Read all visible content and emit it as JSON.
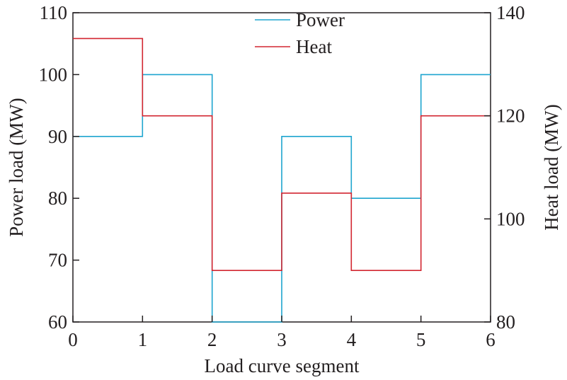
{
  "chart_data": {
    "type": "line",
    "step": "post",
    "xlabel": "Load curve segment",
    "ylabel_left": "Power load (MW)",
    "ylabel_right": "Heat load (MW)",
    "xlim": [
      0,
      6
    ],
    "ylim_left": [
      60,
      110
    ],
    "ylim_right": [
      80,
      140
    ],
    "xticks": [
      "0",
      "1",
      "2",
      "3",
      "4",
      "5",
      "6"
    ],
    "yticks_left": [
      "60",
      "70",
      "80",
      "90",
      "100",
      "110"
    ],
    "yticks_right": [
      "80",
      "100",
      "120",
      "140"
    ],
    "grid": false,
    "legend_position": "top-center",
    "series": [
      {
        "name": "Power",
        "axis": "left",
        "color": "#1ea5cf",
        "x": [
          0,
          1,
          2,
          3,
          4,
          5,
          6
        ],
        "values": [
          90,
          100,
          60,
          90,
          80,
          100,
          100
        ]
      },
      {
        "name": "Heat",
        "axis": "right",
        "color": "#d22630",
        "x": [
          0,
          1,
          2,
          3,
          4,
          5,
          6
        ],
        "values": [
          135,
          120,
          90,
          105,
          90,
          120,
          120
        ]
      }
    ]
  }
}
